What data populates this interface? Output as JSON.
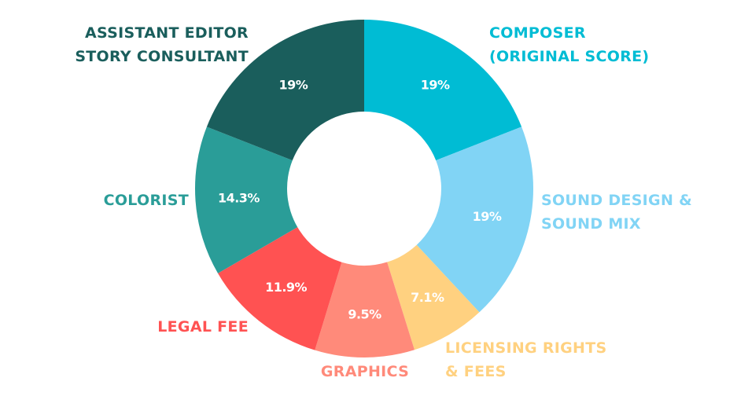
{
  "chart_data": {
    "type": "pie",
    "donut": true,
    "slices": [
      {
        "name": "COMPOSER (ORIGINAL SCORE)",
        "label_lines": [
          "COMPOSER",
          "(ORIGINAL SCORE)"
        ],
        "value": 19,
        "value_label": "19%",
        "color": "#00BCD4"
      },
      {
        "name": "SOUND DESIGN & SOUND MIX",
        "label_lines": [
          "SOUND DESIGN &",
          "SOUND MIX"
        ],
        "value": 19,
        "value_label": "19%",
        "color": "#81D4F5"
      },
      {
        "name": "LICENSING RIGHTS & FEES",
        "label_lines": [
          "LICENSING RIGHTS",
          "& FEES"
        ],
        "value": 7.1,
        "value_label": "7.1%",
        "color": "#FFD180"
      },
      {
        "name": "GRAPHICS",
        "label_lines": [
          "GRAPHICS"
        ],
        "value": 9.5,
        "value_label": "9.5%",
        "color": "#FF8A7A"
      },
      {
        "name": "LEGAL FEE",
        "label_lines": [
          "LEGAL FEE"
        ],
        "value": 11.9,
        "value_label": "11.9%",
        "color": "#FF5252"
      },
      {
        "name": "COLORIST",
        "label_lines": [
          "COLORIST"
        ],
        "value": 14.3,
        "value_label": "14.3%",
        "color": "#2A9D98"
      },
      {
        "name": "ASSISTANT EDITOR STORY CONSULTANT",
        "label_lines": [
          "ASSISTANT EDITOR",
          "STORY CONSULTANT"
        ],
        "value": 19,
        "value_label": "19%",
        "color": "#1A5E5C"
      }
    ],
    "start_angle_deg": 0,
    "direction": "clockwise"
  }
}
